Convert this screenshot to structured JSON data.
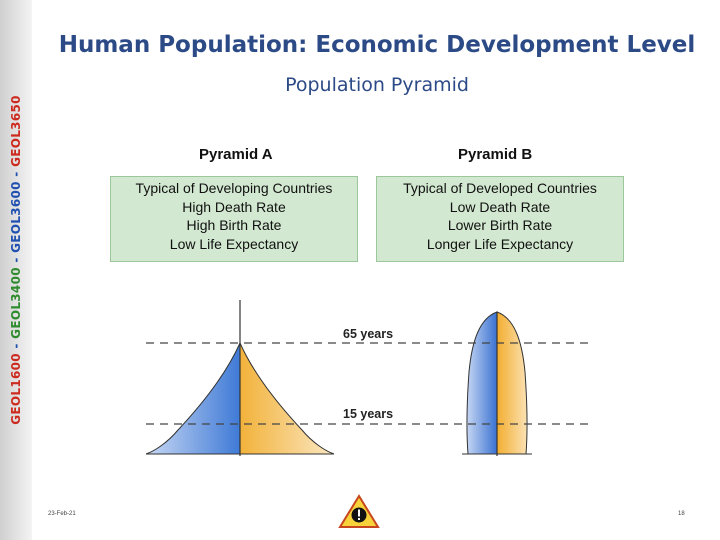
{
  "sidebar": {
    "course_code_1": "GEOL1600",
    "sep_1": " - ",
    "course_code_2": "GEOL3400",
    "sep_2": " - ",
    "course_code_3": "GEOL3600",
    "sep_3": " - ",
    "course_code_4": "GEOL3650"
  },
  "header": {
    "title": "Human Population: Economic Development Level",
    "subtitle": "Population Pyramid"
  },
  "pyramid_a": {
    "heading": "Pyramid A",
    "lines": [
      "Typical of Developing Countries",
      "High Death Rate",
      "High Birth Rate",
      "Low Life Expectancy"
    ]
  },
  "pyramid_b": {
    "heading": "Pyramid B",
    "lines": [
      "Typical of Developed Countries",
      "Low Death Rate",
      "Lower Birth Rate",
      "Longer Life Expectancy"
    ]
  },
  "age_markers": {
    "upper": "65 years",
    "lower": "15 years"
  },
  "footer": {
    "date": "23-Feb-21",
    "page": "18"
  },
  "colors": {
    "title": "#2b4a86",
    "box_fill": "#d2e8d0",
    "male": "#4a82d8",
    "female": "#f0b040"
  }
}
